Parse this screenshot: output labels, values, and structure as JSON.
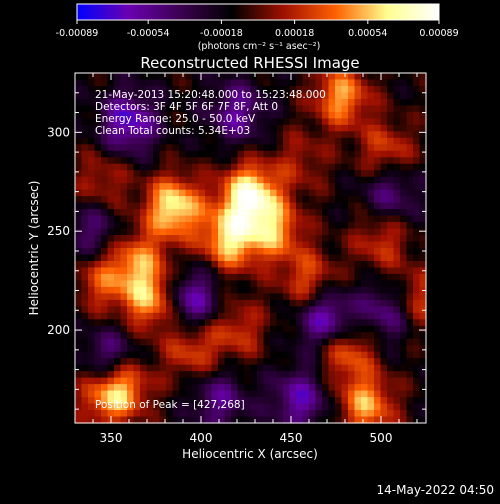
{
  "chart_data": {
    "type": "heatmap",
    "title": "Reconstructed RHESSI Image",
    "xlabel": "Heliocentric X (arcsec)",
    "ylabel": "Heliocentric Y (arcsec)",
    "xlim": [
      330,
      525
    ],
    "ylim": [
      153,
      330
    ],
    "x_ticks": [
      350,
      400,
      450,
      500
    ],
    "y_ticks": [
      200,
      250,
      300
    ],
    "colorbar": {
      "ticks": [
        "-0.00089",
        "-0.00054",
        "-0.00018",
        "0.00018",
        "0.00054",
        "0.00089"
      ],
      "unit_label": "(photons cm⁻² s⁻¹ asec⁻²)",
      "range": [
        -0.00089,
        0.00089
      ],
      "colors": [
        "#0000ff",
        "#6a00b0",
        "#3c0050",
        "#000000",
        "#a01000",
        "#ff6000",
        "#ffff90",
        "#ffffff"
      ]
    },
    "annotations": [
      "21-May-2013 15:20:48.000 to 15:23:48.000",
      "Detectors: 3F 4F 5F 6F 7F 8F, Att 0",
      "Energy Range: 25.0 - 50.0 keV",
      "Clean    Total counts: 5.34E+03"
    ],
    "peak_label": "Position of Peak = [427,268]",
    "peak_position": [
      427,
      268
    ],
    "sources": [
      {
        "x": 427,
        "y": 268,
        "value": 0.00089
      },
      {
        "x": 385,
        "y": 262,
        "value": 0.0008
      },
      {
        "x": 416,
        "y": 246,
        "value": 0.00072
      },
      {
        "x": 441,
        "y": 250,
        "value": 0.00055
      },
      {
        "x": 460,
        "y": 225,
        "value": 0.00042
      },
      {
        "x": 365,
        "y": 235,
        "value": 0.00048
      },
      {
        "x": 372,
        "y": 215,
        "value": 0.0006
      },
      {
        "x": 345,
        "y": 225,
        "value": 0.0004
      },
      {
        "x": 356,
        "y": 172,
        "value": 0.00065
      },
      {
        "x": 395,
        "y": 190,
        "value": 0.0004
      },
      {
        "x": 420,
        "y": 200,
        "value": 0.00035
      },
      {
        "x": 480,
        "y": 190,
        "value": 0.00052
      },
      {
        "x": 492,
        "y": 162,
        "value": 0.0006
      },
      {
        "x": 500,
        "y": 245,
        "value": 0.00035
      },
      {
        "x": 518,
        "y": 215,
        "value": 0.00045
      },
      {
        "x": 478,
        "y": 318,
        "value": 0.0006
      },
      {
        "x": 503,
        "y": 290,
        "value": 0.0004
      },
      {
        "x": 345,
        "y": 275,
        "value": 0.0003
      },
      {
        "x": 455,
        "y": 285,
        "value": 0.00025
      },
      {
        "x": 345,
        "y": 165,
        "value": 0.00035
      }
    ],
    "troughs": [
      {
        "x": 360,
        "y": 305,
        "value": -0.0006
      },
      {
        "x": 350,
        "y": 185,
        "value": -0.0005
      },
      {
        "x": 395,
        "y": 215,
        "value": -0.00055
      },
      {
        "x": 470,
        "y": 205,
        "value": -0.00065
      },
      {
        "x": 505,
        "y": 210,
        "value": -0.0005
      },
      {
        "x": 455,
        "y": 165,
        "value": -0.0005
      },
      {
        "x": 420,
        "y": 310,
        "value": -0.00045
      },
      {
        "x": 505,
        "y": 270,
        "value": -0.0004
      },
      {
        "x": 410,
        "y": 165,
        "value": -0.0004
      },
      {
        "x": 340,
        "y": 250,
        "value": -0.00035
      }
    ]
  },
  "footer": {
    "date": "14-May-2022 04:50"
  }
}
